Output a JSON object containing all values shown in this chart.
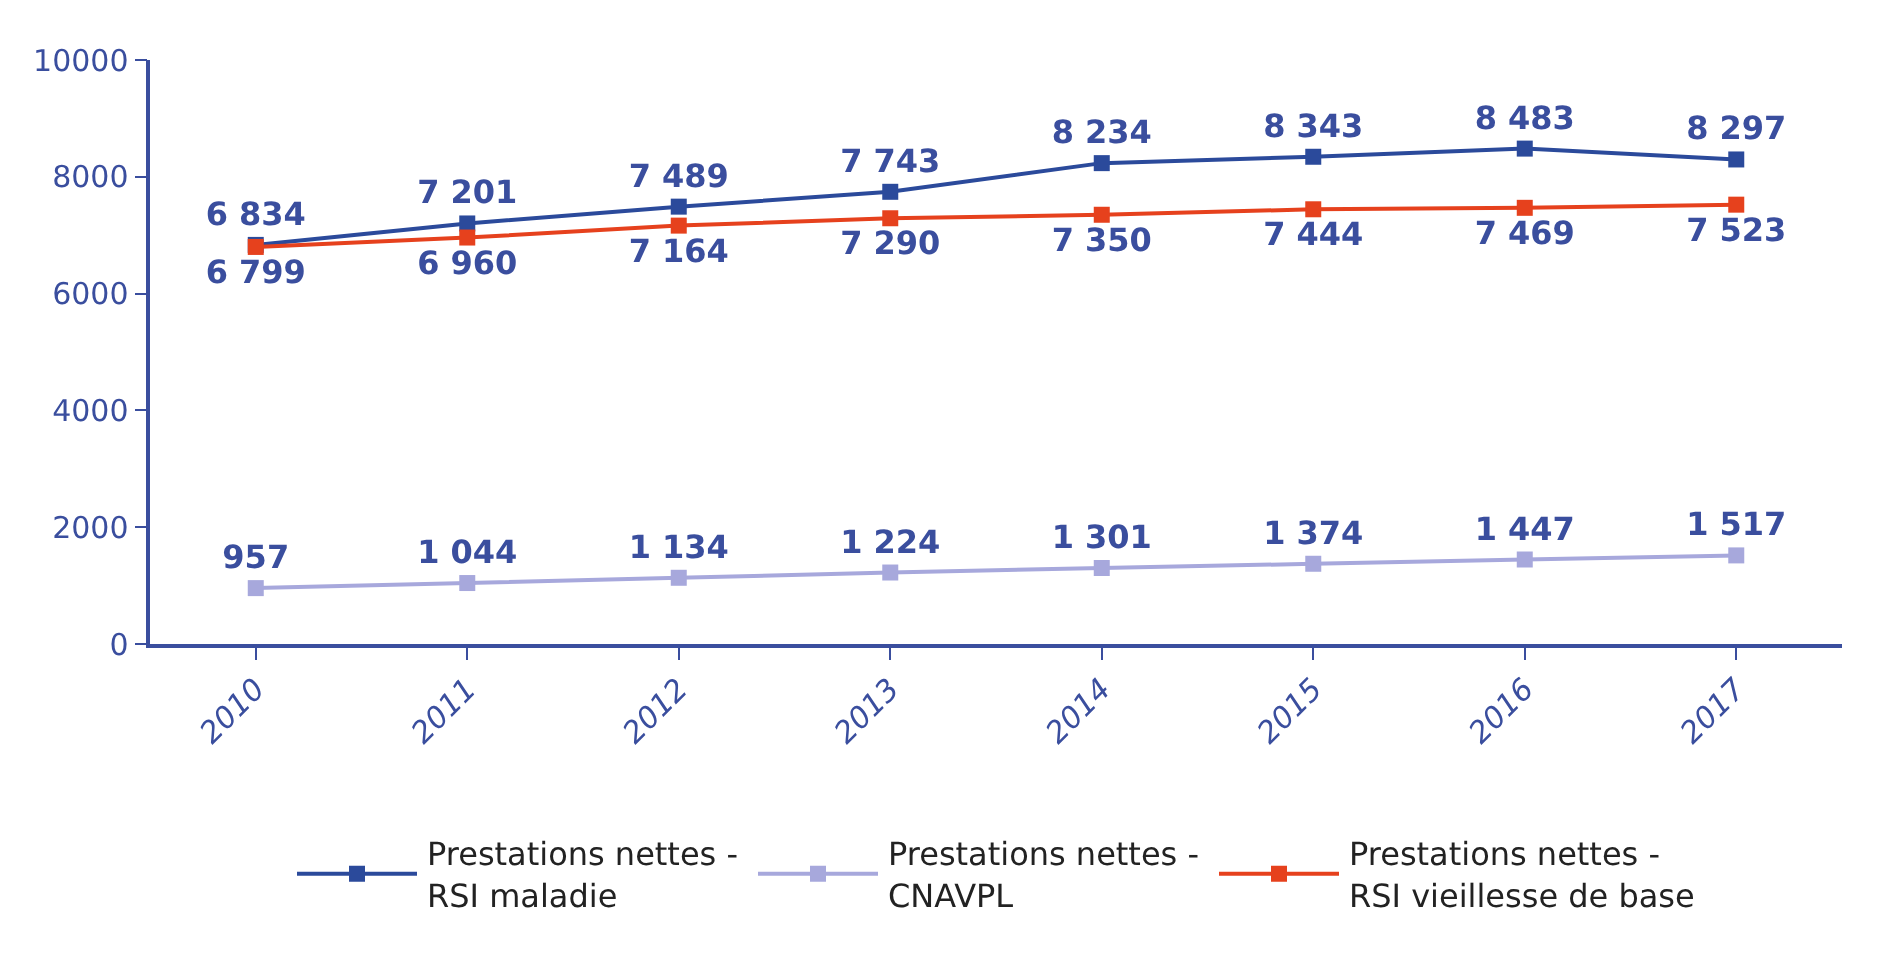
{
  "chart_data": {
    "type": "line",
    "categories": [
      "2010",
      "2011",
      "2012",
      "2013",
      "2014",
      "2015",
      "2016",
      "2017"
    ],
    "series": [
      {
        "name": "Prestations nettes -\nRSI maladie",
        "color": "#2b4a9b",
        "values": [
          6834,
          7201,
          7489,
          7743,
          8234,
          8343,
          8483,
          8297
        ],
        "value_labels": [
          "6 834",
          "7 201",
          "7 489",
          "7 743",
          "8 234",
          "8 343",
          "8 483",
          "8 297"
        ]
      },
      {
        "name": "Prestations nettes -\nCNAVPL",
        "color": "#a7a8dc",
        "values": [
          957,
          1044,
          1134,
          1224,
          1301,
          1374,
          1447,
          1517
        ],
        "value_labels": [
          "957",
          "1 044",
          "1 134",
          "1 224",
          "1 301",
          "1 374",
          "1 447",
          "1 517"
        ]
      },
      {
        "name": "Prestations nettes -\nRSI vieillesse de base",
        "color": "#e6411d",
        "values": [
          6799,
          6960,
          7164,
          7290,
          7350,
          7444,
          7469,
          7523
        ],
        "value_labels": [
          "6 799",
          "6 960",
          "7 164",
          "7 290",
          "7 350",
          "7 444",
          "7 469",
          "7 523"
        ]
      }
    ],
    "ylim": [
      0,
      10000
    ],
    "yticks": [
      0,
      2000,
      4000,
      6000,
      8000,
      10000
    ],
    "grid": false,
    "legend": "bottom",
    "marker": "square",
    "line_style": "solid"
  }
}
